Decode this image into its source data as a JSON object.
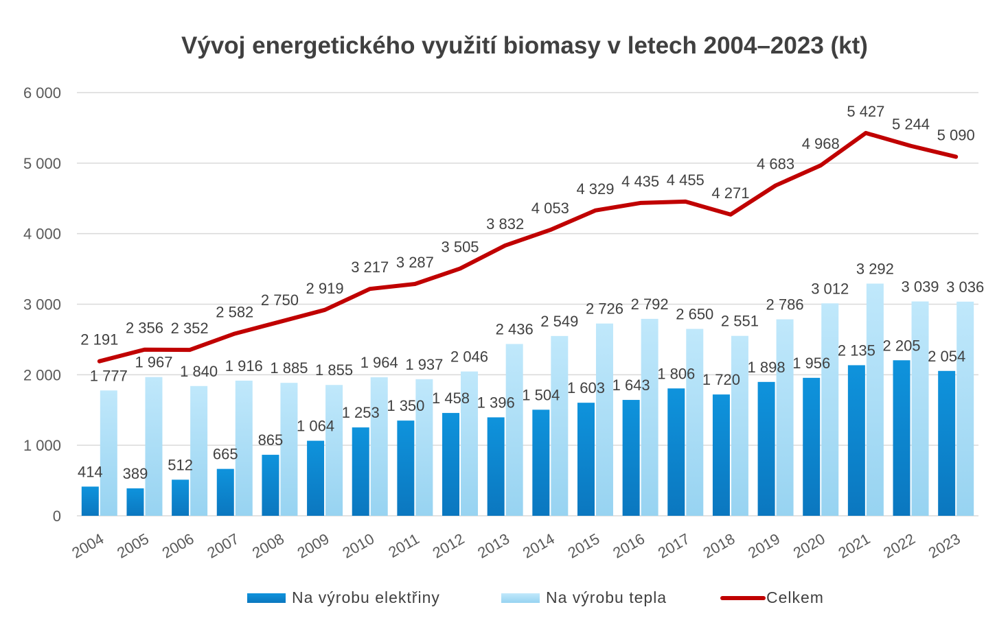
{
  "chart_data": {
    "type": "bar",
    "title": "Vývoj energetického využití biomasy v letech 2004–2023 (kt)",
    "categories": [
      "2004",
      "2005",
      "2006",
      "2007",
      "2008",
      "2009",
      "2010",
      "2011",
      "2012",
      "2013",
      "2014",
      "2015",
      "2016",
      "2017",
      "2018",
      "2019",
      "2020",
      "2021",
      "2022",
      "2023"
    ],
    "series": [
      {
        "name": "Na výrobu elektřiny",
        "type": "bar",
        "color": "#0e8ed8",
        "values": [
          414,
          389,
          512,
          665,
          865,
          1064,
          1253,
          1350,
          1458,
          1396,
          1504,
          1603,
          1643,
          1806,
          1720,
          1898,
          1956,
          2135,
          2205,
          2054
        ],
        "labels": [
          "414",
          "389",
          "512",
          "665",
          "865",
          "1 064",
          "1 253",
          "1 350",
          "1 458",
          "1 396",
          "1 504",
          "1 603",
          "1 643",
          "1 806",
          "1 720",
          "1 898",
          "1 956",
          "2 135",
          "2 205",
          "2 054"
        ]
      },
      {
        "name": "Na výrobu tepla",
        "type": "bar",
        "color": "#a6dcf6",
        "values": [
          1777,
          1967,
          1840,
          1916,
          1885,
          1855,
          1964,
          1937,
          2046,
          2436,
          2549,
          2726,
          2792,
          2650,
          2551,
          2786,
          3012,
          3292,
          3039,
          3036
        ],
        "labels": [
          "1 777",
          "1 967",
          "1 840",
          "1 916",
          "1 885",
          "1 855",
          "1 964",
          "1 937",
          "2 046",
          "2 436",
          "2 549",
          "2 726",
          "2 792",
          "2 650",
          "2 551",
          "2 786",
          "3 012",
          "3 292",
          "3 039",
          "3 036"
        ]
      },
      {
        "name": "Celkem",
        "type": "line",
        "color": "#c00000",
        "values": [
          2191,
          2356,
          2352,
          2582,
          2750,
          2919,
          3217,
          3287,
          3505,
          3832,
          4053,
          4329,
          4435,
          4455,
          4271,
          4683,
          4968,
          5427,
          5244,
          5090
        ],
        "labels": [
          "2 191",
          "2 356",
          "2 352",
          "2 582",
          "2 750",
          "2 919",
          "3 217",
          "3 287",
          "3 505",
          "3 832",
          "4 053",
          "4 329",
          "4 435",
          "4 455",
          "4 271",
          "4 683",
          "4 968",
          "5 427",
          "5 244",
          "5 090"
        ]
      }
    ],
    "ylim": [
      0,
      6000
    ],
    "yticks": [
      0,
      1000,
      2000,
      3000,
      4000,
      5000,
      6000
    ],
    "ytick_labels": [
      "0",
      "1 000",
      "2 000",
      "3 000",
      "4 000",
      "5 000",
      "6 000"
    ],
    "grid": true,
    "legend_position": "bottom"
  }
}
